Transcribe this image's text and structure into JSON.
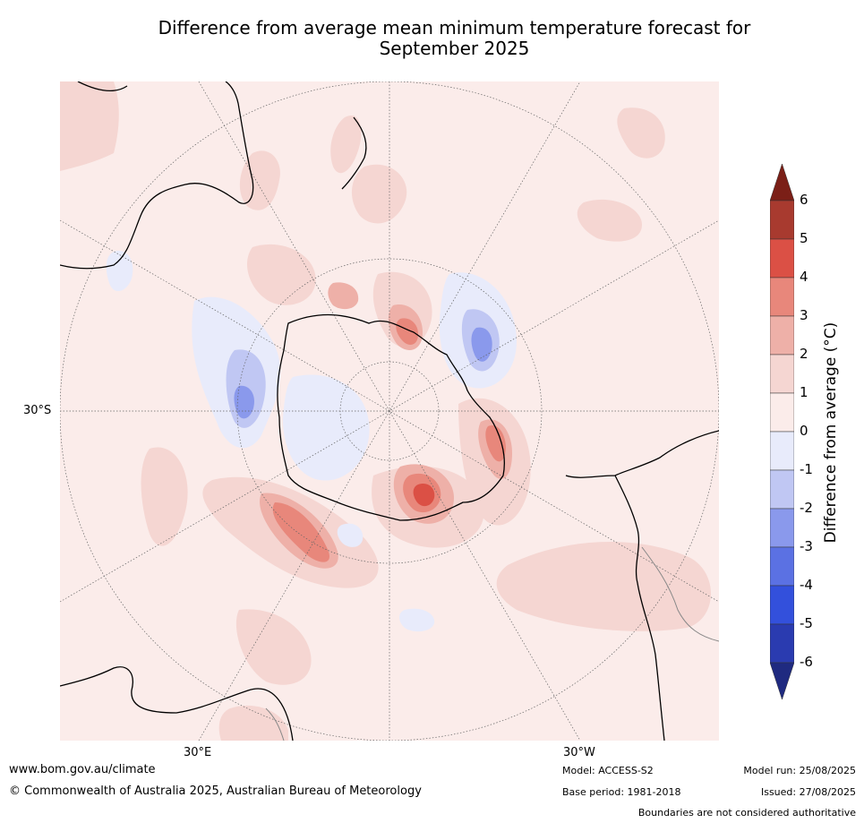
{
  "title_line1": "Difference from average mean minimum temperature forecast for",
  "title_line2": "September 2025",
  "map": {
    "projection": "south-polar-stereographic",
    "lat_label": "30°S",
    "lon_labels": [
      "30°E",
      "30°W"
    ],
    "colors": {
      "land_outline": "#000000",
      "border": "#888888",
      "graticule": "#666666"
    }
  },
  "colorbar": {
    "label": "Difference from average (°C)",
    "ticks": [
      "6",
      "5",
      "4",
      "3",
      "2",
      "1",
      "0",
      "-1",
      "-2",
      "-3",
      "-4",
      "-5",
      "-6"
    ],
    "bins": [
      {
        "range": "5 to 6",
        "color": "#a83a2f"
      },
      {
        "range": "4 to 5",
        "color": "#db5045"
      },
      {
        "range": "3 to 4",
        "color": "#e8877b"
      },
      {
        "range": "2 to 3",
        "color": "#eeb0a8"
      },
      {
        "range": "1 to 2",
        "color": "#f5d6d2"
      },
      {
        "range": "0 to 1",
        "color": "#fbecea"
      },
      {
        "range": "-1 to 0",
        "color": "#e8ebfb"
      },
      {
        "range": "-2 to -1",
        "color": "#c0c7f3"
      },
      {
        "range": "-3 to -2",
        "color": "#8a99ec"
      },
      {
        "range": "-4 to -3",
        "color": "#5b71e3"
      },
      {
        "range": "-5 to -4",
        "color": "#3350dc"
      },
      {
        "range": "-6 to -5",
        "color": "#2a3bb0"
      }
    ],
    "over_color": "#7b1f17",
    "under_color": "#1f2a80"
  },
  "footer": {
    "website": "www.bom.gov.au/climate",
    "copyright": "© Commonwealth of Australia 2025, Australian Bureau of Meteorology",
    "model": "Model: ACCESS-S2",
    "base_period": "Base period: 1981-2018",
    "model_run": "Model run: 25/08/2025",
    "issued": "Issued: 27/08/2025",
    "disclaimer": "Boundaries are not considered authoritative"
  }
}
